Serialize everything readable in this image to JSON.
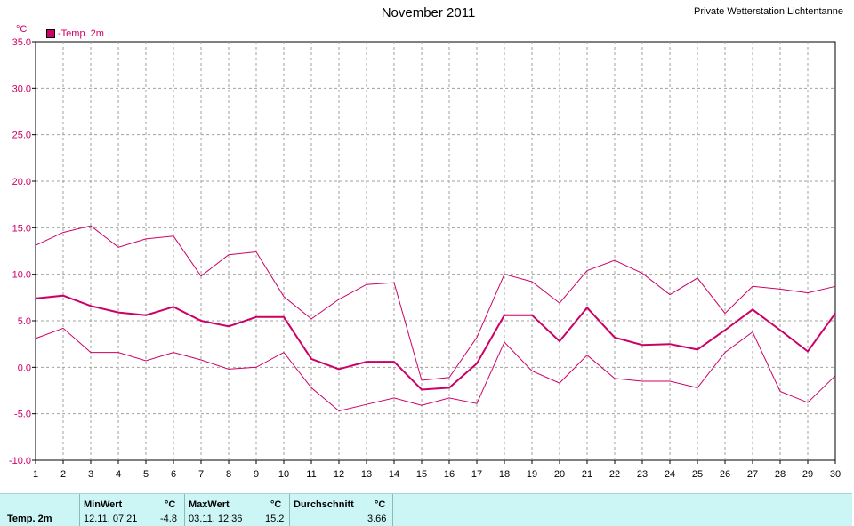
{
  "header": {
    "title": "November 2011",
    "station": "Private Wetterstation Lichtentanne",
    "unit": "°C",
    "legend_label": "-Temp. 2m"
  },
  "colors": {
    "series": "#cc0066",
    "grid": "#a0a0a0",
    "stats_bg": "#ccf5f5"
  },
  "chart_data": {
    "type": "line",
    "title": "November 2011",
    "ylabel": "°C",
    "xlabel": "",
    "ylim": [
      -10,
      35
    ],
    "yticks": [
      "35.0",
      "30.0",
      "25.0",
      "20.0",
      "15.0",
      "10.0",
      "5.0",
      "0.0",
      "-5.0",
      "-10.0"
    ],
    "x": [
      1,
      2,
      3,
      4,
      5,
      6,
      7,
      8,
      9,
      10,
      11,
      12,
      13,
      14,
      15,
      16,
      17,
      18,
      19,
      20,
      21,
      22,
      23,
      24,
      25,
      26,
      27,
      28,
      29,
      30
    ],
    "grid": true,
    "legend_position": "top-left",
    "series": [
      {
        "name": "-Temp. 2m",
        "role": "mean",
        "values": [
          7.4,
          7.7,
          6.6,
          5.9,
          5.6,
          6.5,
          5.0,
          4.4,
          5.4,
          5.4,
          0.9,
          -0.2,
          0.6,
          0.6,
          -2.4,
          -2.2,
          0.4,
          5.6,
          5.6,
          2.8,
          6.4,
          3.2,
          2.4,
          2.5,
          1.9,
          4.0,
          6.2,
          4.0,
          1.7,
          5.8
        ]
      },
      {
        "role": "max",
        "values": [
          13.1,
          14.5,
          15.2,
          12.9,
          13.8,
          14.1,
          9.8,
          12.1,
          12.4,
          7.6,
          5.2,
          7.3,
          8.9,
          9.1,
          -1.4,
          -1.1,
          3.2,
          10.0,
          9.2,
          6.9,
          10.4,
          11.5,
          10.1,
          7.8,
          9.6,
          5.8,
          8.7,
          8.4,
          8.0,
          8.7
        ]
      },
      {
        "role": "min",
        "values": [
          3.1,
          4.2,
          1.6,
          1.6,
          0.7,
          1.6,
          0.8,
          -0.2,
          0.0,
          1.6,
          -2.2,
          -4.7,
          -4.0,
          -3.3,
          -4.1,
          -3.3,
          -3.9,
          2.7,
          -0.4,
          -1.7,
          1.3,
          -1.2,
          -1.5,
          -1.5,
          -2.2,
          1.6,
          3.8,
          -2.6,
          -3.8,
          -0.9
        ]
      }
    ]
  },
  "stats": {
    "row_label": "Temp. 2m",
    "min_header": "MinWert",
    "min_unit": "°C",
    "min_time": "12.11.  07:21",
    "min_value": "-4.8",
    "max_header": "MaxWert",
    "max_unit": "°C",
    "max_time": "03.11.  12:36",
    "max_value": "15.2",
    "avg_header": "Durchschnitt",
    "avg_unit": "°C",
    "avg_value": "3.66"
  }
}
